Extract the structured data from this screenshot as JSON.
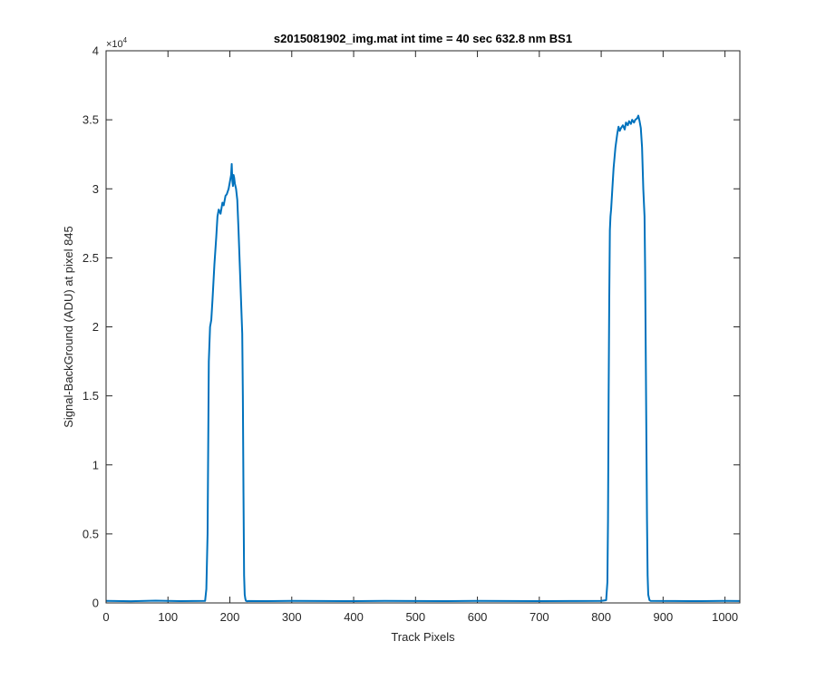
{
  "chart_data": {
    "type": "line",
    "title": "s2015081902_img.mat int time = 40 sec  632.8 nm BS1",
    "xlabel": "Track Pixels",
    "ylabel": "Signal-BackGround (ADU) at pixel 845",
    "xlim": [
      0,
      1024
    ],
    "ylim": [
      0,
      40000
    ],
    "x_ticks": [
      0,
      100,
      200,
      300,
      400,
      500,
      600,
      700,
      800,
      900,
      1000
    ],
    "x_tick_labels": [
      "0",
      "100",
      "200",
      "300",
      "400",
      "500",
      "600",
      "700",
      "800",
      "900",
      "1000"
    ],
    "y_ticks": [
      0,
      5000,
      10000,
      15000,
      20000,
      25000,
      30000,
      35000,
      40000
    ],
    "y_tick_labels": [
      "0",
      "0.5",
      "1",
      "1.5",
      "2",
      "2.5",
      "3",
      "3.5",
      "4"
    ],
    "y_exponent": "×10",
    "y_exponent_power": "4",
    "grid": false,
    "line_color": "#0072BD",
    "series": [
      {
        "x": [
          0,
          40,
          80,
          120,
          160,
          162,
          164,
          166,
          168,
          170,
          172,
          175,
          178,
          180,
          182,
          185,
          188,
          190,
          193,
          195,
          198,
          200,
          202,
          203,
          204,
          205,
          206,
          207,
          208,
          210,
          212,
          214,
          216,
          218,
          220,
          221,
          222,
          223,
          224,
          225,
          226,
          228,
          230,
          260,
          300,
          350,
          400,
          450,
          500,
          550,
          600,
          650,
          700,
          750,
          800,
          808,
          810,
          811,
          812,
          813,
          814,
          815,
          816,
          818,
          820,
          823,
          826,
          828,
          830,
          832,
          835,
          838,
          840,
          843,
          845,
          848,
          850,
          853,
          855,
          858,
          860,
          862,
          864,
          866,
          867,
          868,
          869,
          870,
          871,
          872,
          873,
          874,
          875,
          876,
          878,
          880,
          920,
          960,
          1000,
          1024
        ],
        "y": [
          150,
          120,
          160,
          130,
          150,
          1000,
          5000,
          17500,
          20000,
          20500,
          22000,
          24500,
          26500,
          28000,
          28500,
          28200,
          29000,
          28800,
          29500,
          29600,
          30000,
          30500,
          31000,
          31800,
          30600,
          30200,
          31000,
          30800,
          30400,
          30000,
          29200,
          27000,
          24500,
          22000,
          19500,
          15000,
          8000,
          2000,
          600,
          300,
          150,
          120,
          140,
          130,
          150,
          140,
          130,
          150,
          140,
          130,
          150,
          140,
          130,
          140,
          150,
          200,
          1500,
          6000,
          15000,
          22000,
          27000,
          28000,
          28500,
          30000,
          31500,
          33000,
          34000,
          34500,
          34200,
          34400,
          34600,
          34300,
          34800,
          34600,
          34900,
          34700,
          35000,
          34800,
          35000,
          35100,
          35300,
          34900,
          34400,
          33000,
          31500,
          30000,
          29000,
          28000,
          24000,
          18000,
          12000,
          6000,
          2000,
          600,
          200,
          150,
          140,
          130,
          150,
          140
        ]
      }
    ]
  }
}
